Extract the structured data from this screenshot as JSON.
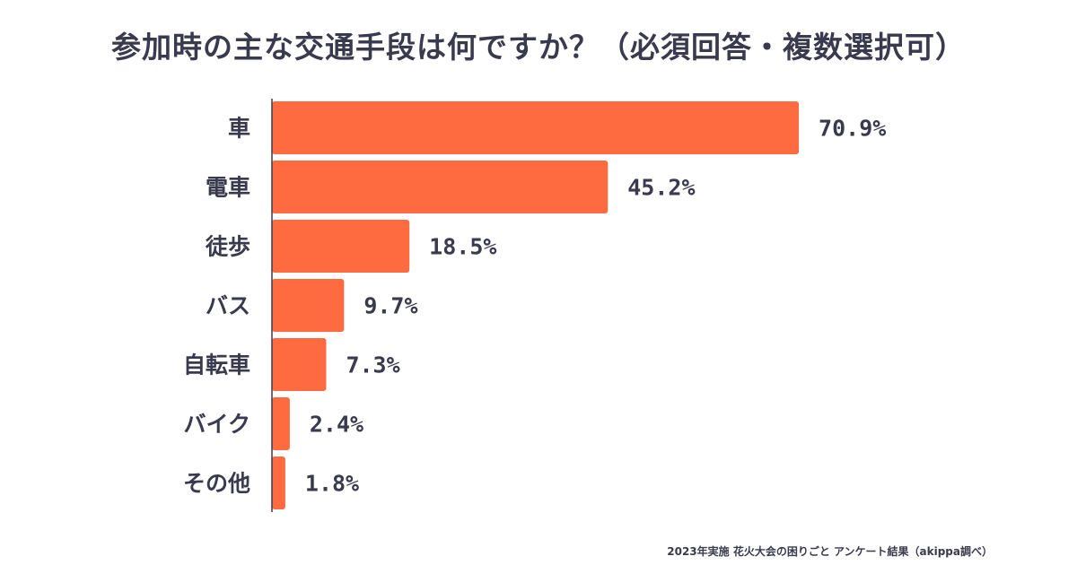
{
  "title": "参加時の主な交通手段は何ですか？（必須回答・複数選択可）",
  "footnote": "2023年実施 花火大会の困りごと アンケート結果（akippa調べ）",
  "colors": {
    "bar": "#ff6b40",
    "text": "#3a3a4e",
    "axis": "#3a3a4e"
  },
  "chart_data": {
    "type": "bar",
    "orientation": "horizontal",
    "title": "参加時の主な交通手段は何ですか？（必須回答・複数選択可）",
    "categories": [
      "車",
      "電車",
      "徒歩",
      "バス",
      "自転車",
      "バイク",
      "その他"
    ],
    "values": [
      70.9,
      45.2,
      18.5,
      9.7,
      7.3,
      2.4,
      1.8
    ],
    "value_labels": [
      "70.9%",
      "45.2%",
      "18.5%",
      "9.7%",
      "7.3%",
      "2.4%",
      "1.8%"
    ],
    "unit": "%",
    "xlim": [
      0,
      100
    ],
    "grid": false,
    "legend": "none"
  }
}
